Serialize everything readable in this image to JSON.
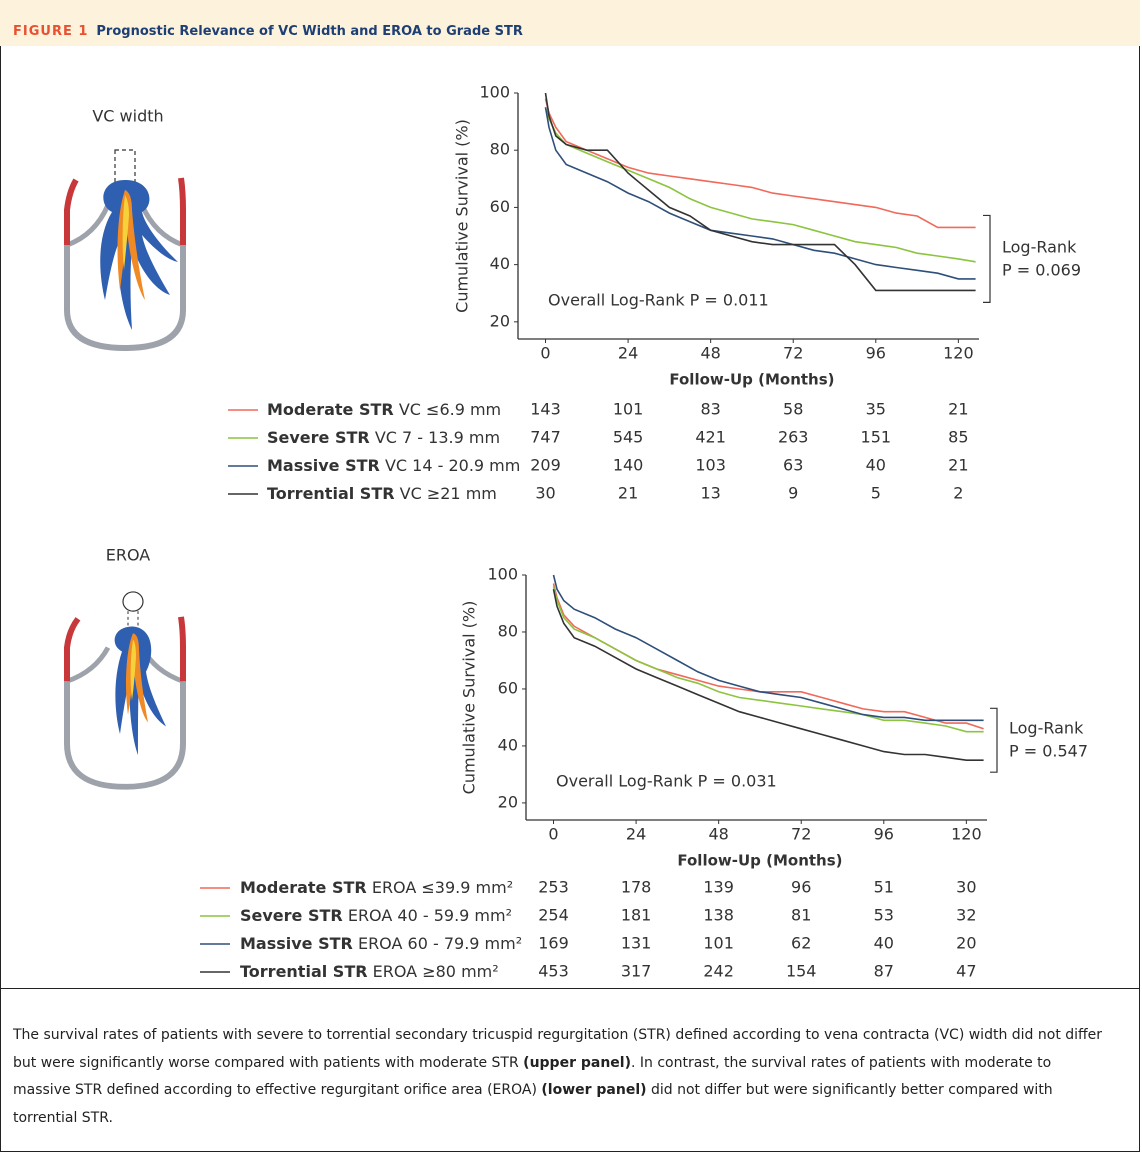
{
  "figure": {
    "label": "FIGURE 1",
    "title": "Prognostic Relevance of VC Width and EROA to Grade STR"
  },
  "chart_data": [
    {
      "type": "line",
      "illustration_label": "VC width",
      "xlabel": "Follow-Up (Months)",
      "ylabel": "Cumulative Survival (%)",
      "overall_annotation": "Overall Log-Rank P = 0.011",
      "bracket_annotation": [
        "Log-Rank",
        "P = 0.069"
      ],
      "xlim": [
        -8,
        126
      ],
      "ylim": [
        14,
        100
      ],
      "xticks": [
        0,
        24,
        48,
        72,
        96,
        120
      ],
      "yticks": [
        20,
        40,
        60,
        80,
        100
      ],
      "x": [
        0,
        1,
        3,
        6,
        12,
        18,
        24,
        30,
        36,
        42,
        48,
        54,
        60,
        66,
        72,
        78,
        84,
        90,
        96,
        102,
        108,
        114,
        120,
        125
      ],
      "series": [
        {
          "name": "Moderate STR",
          "criterion": "VC ≤6.9 mm",
          "color": "#f0695a",
          "values": [
            98,
            93,
            88,
            83,
            80,
            77,
            74,
            72,
            71,
            70,
            69,
            68,
            67,
            65,
            64,
            63,
            62,
            61,
            60,
            58,
            57,
            53,
            53,
            53
          ],
          "at_risk": [
            143,
            101,
            83,
            58,
            35,
            21
          ]
        },
        {
          "name": "Severe STR",
          "criterion": "VC 7 - 13.9 mm",
          "color": "#8cc43f",
          "values": [
            95,
            91,
            86,
            82,
            79,
            76,
            73,
            70,
            67,
            63,
            60,
            58,
            56,
            55,
            54,
            52,
            50,
            48,
            47,
            46,
            44,
            43,
            42,
            41
          ],
          "at_risk": [
            747,
            545,
            421,
            263,
            151,
            85
          ]
        },
        {
          "name": "Massive STR",
          "criterion": "VC 14 - 20.9 mm",
          "color": "#2f4f7a",
          "values": [
            95,
            88,
            80,
            75,
            72,
            69,
            65,
            62,
            58,
            55,
            52,
            51,
            50,
            49,
            47,
            45,
            44,
            42,
            40,
            39,
            38,
            37,
            35,
            35
          ],
          "at_risk": [
            209,
            140,
            103,
            63,
            40,
            21
          ]
        },
        {
          "name": "Torrential STR",
          "criterion": "VC ≥21 mm",
          "color": "#333333",
          "values": [
            100,
            92,
            85,
            82,
            80,
            80,
            72,
            66,
            60,
            57,
            52,
            50,
            48,
            47,
            47,
            47,
            47,
            40,
            31,
            31,
            31,
            31,
            31,
            31
          ],
          "at_risk": [
            30,
            21,
            13,
            9,
            5,
            2
          ]
        }
      ]
    },
    {
      "type": "line",
      "illustration_label": "EROA",
      "xlabel": "Follow-Up (Months)",
      "ylabel": "Cumulative Survival (%)",
      "overall_annotation": "Overall Log-Rank P = 0.031",
      "bracket_annotation": [
        "Log-Rank",
        "P = 0.547"
      ],
      "xlim": [
        -8,
        126
      ],
      "ylim": [
        14,
        100
      ],
      "xticks": [
        0,
        24,
        48,
        72,
        96,
        120
      ],
      "yticks": [
        20,
        40,
        60,
        80,
        100
      ],
      "x": [
        0,
        1,
        3,
        6,
        12,
        18,
        24,
        30,
        36,
        42,
        48,
        54,
        60,
        66,
        72,
        78,
        84,
        90,
        96,
        102,
        108,
        114,
        120,
        125
      ],
      "series": [
        {
          "name": "Moderate STR",
          "criterion": "EROA ≤39.9 mm²",
          "color": "#f0695a",
          "values": [
            97,
            92,
            86,
            82,
            78,
            74,
            70,
            67,
            65,
            63,
            61,
            60,
            59,
            59,
            59,
            57,
            55,
            53,
            52,
            52,
            50,
            48,
            48,
            46
          ],
          "at_risk": [
            253,
            178,
            139,
            96,
            51,
            30
          ]
        },
        {
          "name": "Severe STR",
          "criterion": "EROA 40 - 59.9 mm²",
          "color": "#8cc43f",
          "values": [
            96,
            91,
            85,
            81,
            78,
            74,
            70,
            67,
            64,
            62,
            59,
            57,
            56,
            55,
            54,
            53,
            52,
            51,
            49,
            49,
            48,
            47,
            45,
            45
          ],
          "at_risk": [
            254,
            181,
            138,
            81,
            53,
            32
          ]
        },
        {
          "name": "Massive STR",
          "criterion": "EROA 60 - 79.9 mm²",
          "color": "#2f4f7a",
          "values": [
            100,
            95,
            91,
            88,
            85,
            81,
            78,
            74,
            70,
            66,
            63,
            61,
            59,
            58,
            57,
            55,
            53,
            51,
            50,
            50,
            49,
            49,
            49,
            49
          ],
          "at_risk": [
            169,
            131,
            101,
            62,
            40,
            20
          ]
        },
        {
          "name": "Torrential STR",
          "criterion": "EROA ≥80 mm²",
          "color": "#333333",
          "values": [
            95,
            89,
            83,
            78,
            75,
            71,
            67,
            64,
            61,
            58,
            55,
            52,
            50,
            48,
            46,
            44,
            42,
            40,
            38,
            37,
            37,
            36,
            35,
            35
          ],
          "at_risk": [
            453,
            317,
            242,
            154,
            87,
            47
          ]
        }
      ]
    }
  ],
  "caption": [
    {
      "text": "The survival rates of patients with severe to torrential secondary tricuspid regurgitation (STR) defined according to vena contracta (VC) width did not differ but were significantly worse compared with patients with moderate STR ",
      "bold": false
    },
    {
      "text": "(upper panel)",
      "bold": true
    },
    {
      "text": ". In contrast, the survival rates of patients with moderate to massive STR defined according to effective regurgitant orifice area (EROA) ",
      "bold": false
    },
    {
      "text": "(lower panel)",
      "bold": true
    },
    {
      "text": " did not differ but were significantly better compared with torrential STR.",
      "bold": false
    }
  ]
}
